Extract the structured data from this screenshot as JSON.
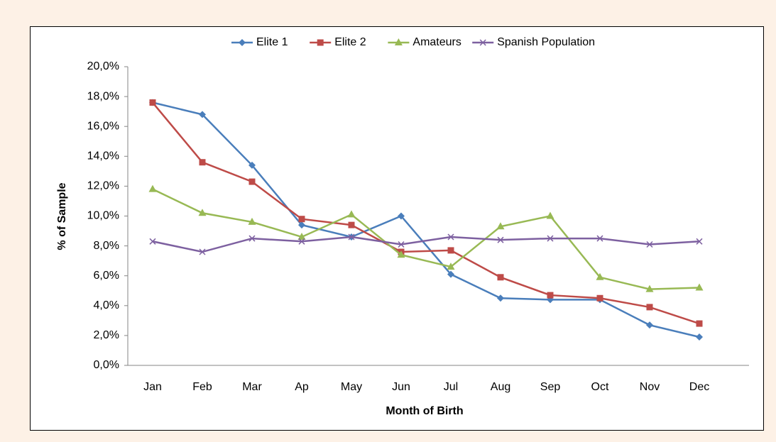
{
  "chart_data": {
    "type": "line",
    "x_label": "Month of Birth",
    "y_label": "% of Sample",
    "categories": [
      "Jan",
      "Feb",
      "Mar",
      "Ap",
      "May",
      "Jun",
      "Jul",
      "Aug",
      "Sep",
      "Oct",
      "Nov",
      "Dec"
    ],
    "series": [
      {
        "name": "Elite 1",
        "color": "#4a7ebb",
        "marker": "diamond",
        "values": [
          17.6,
          16.8,
          13.4,
          9.4,
          8.6,
          10.0,
          6.1,
          4.5,
          4.4,
          4.4,
          2.7,
          1.9
        ]
      },
      {
        "name": "Elite 2",
        "color": "#be4b48",
        "marker": "square",
        "values": [
          17.6,
          13.6,
          12.3,
          9.8,
          9.4,
          7.6,
          7.7,
          5.9,
          4.7,
          4.5,
          3.9,
          2.8
        ]
      },
      {
        "name": "Amateurs",
        "color": "#98b954",
        "marker": "triangle",
        "values": [
          11.8,
          10.2,
          9.6,
          8.6,
          10.1,
          7.4,
          6.6,
          9.3,
          10.0,
          5.9,
          5.1,
          5.2
        ]
      },
      {
        "name": "Spanish Population",
        "color": "#7d60a0",
        "marker": "x",
        "values": [
          8.3,
          7.6,
          8.5,
          8.3,
          8.6,
          8.1,
          8.6,
          8.4,
          8.5,
          8.5,
          8.1,
          8.3
        ]
      }
    ],
    "ylim": [
      0,
      20
    ],
    "yticks": [
      {
        "value": 0,
        "label": "0,0%"
      },
      {
        "value": 2,
        "label": "2,0%"
      },
      {
        "value": 4,
        "label": "4,0%"
      },
      {
        "value": 6,
        "label": "6,0%"
      },
      {
        "value": 8,
        "label": "8,0%"
      },
      {
        "value": 10,
        "label": "10,0%"
      },
      {
        "value": 12,
        "label": "12,0%"
      },
      {
        "value": 14,
        "label": "14,0%"
      },
      {
        "value": 16,
        "label": "16,0%"
      },
      {
        "value": 18,
        "label": "18,0%"
      },
      {
        "value": 20,
        "label": "20,0%"
      }
    ],
    "legend": "top",
    "grid": false
  }
}
